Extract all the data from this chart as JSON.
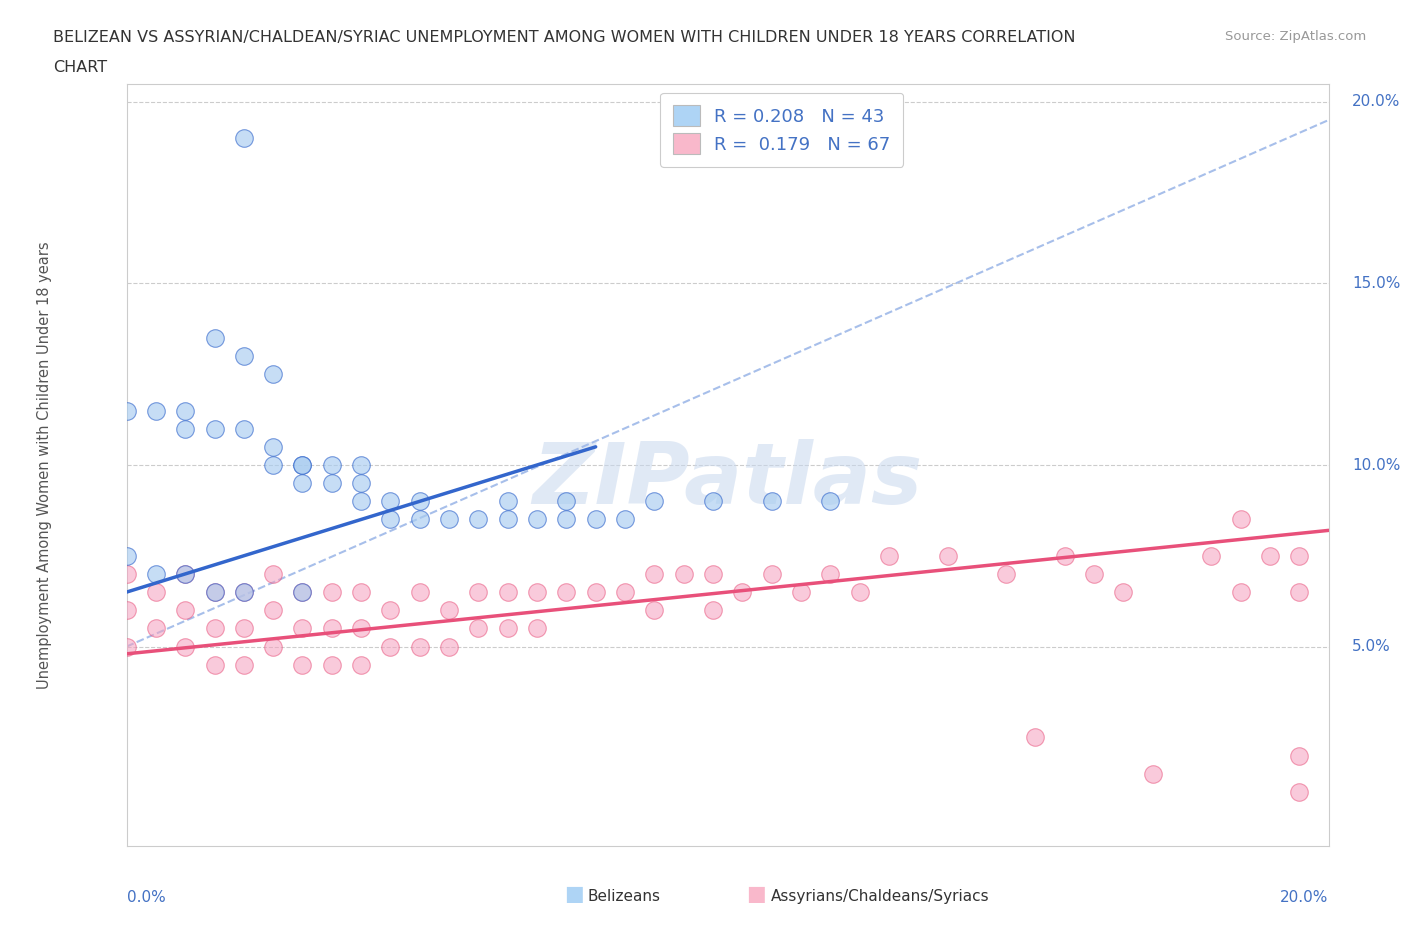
{
  "title_line1": "BELIZEAN VS ASSYRIAN/CHALDEAN/SYRIAC UNEMPLOYMENT AMONG WOMEN WITH CHILDREN UNDER 18 YEARS CORRELATION",
  "title_line2": "CHART",
  "source": "Source: ZipAtlas.com",
  "ylabel": "Unemployment Among Women with Children Under 18 years",
  "color_belizean_fill": "#aed4f5",
  "color_assyrian_fill": "#f9b8cb",
  "color_belizean_scatter": "#a8ccf0",
  "color_assyrian_scatter": "#f5a0be",
  "color_belizean_line": "#3366cc",
  "color_assyrian_line": "#e8507a",
  "color_dashed": "#9eb8e8",
  "color_axis_label": "#4472c4",
  "color_watermark": "#c8d8ee",
  "legend_label1": "R = 0.208   N = 43",
  "legend_label2": "R =  0.179   N = 67",
  "bottom_label1": "Belizeans",
  "bottom_label2": "Assyrians/Chaldeans/Syriacs",
  "xlim": [
    0.0,
    0.205
  ],
  "ylim": [
    -0.005,
    0.205
  ],
  "bel_line_x": [
    0.0,
    0.08
  ],
  "bel_line_y": [
    0.065,
    0.105
  ],
  "ass_line_x": [
    0.0,
    0.205
  ],
  "ass_line_y": [
    0.048,
    0.082
  ],
  "dash_line_x": [
    0.0,
    0.205
  ],
  "dash_line_y": [
    0.05,
    0.195
  ],
  "belizean_x": [
    0.02,
    0.015,
    0.02,
    0.025,
    0.0,
    0.005,
    0.01,
    0.01,
    0.015,
    0.02,
    0.025,
    0.025,
    0.03,
    0.03,
    0.03,
    0.035,
    0.035,
    0.04,
    0.04,
    0.04,
    0.045,
    0.045,
    0.05,
    0.05,
    0.055,
    0.06,
    0.065,
    0.065,
    0.07,
    0.075,
    0.08,
    0.085,
    0.09,
    0.1,
    0.11,
    0.12,
    0.0,
    0.005,
    0.01,
    0.015,
    0.02,
    0.03,
    0.075
  ],
  "belizean_y": [
    0.19,
    0.135,
    0.13,
    0.125,
    0.115,
    0.115,
    0.115,
    0.11,
    0.11,
    0.11,
    0.105,
    0.1,
    0.1,
    0.1,
    0.095,
    0.1,
    0.095,
    0.1,
    0.095,
    0.09,
    0.09,
    0.085,
    0.09,
    0.085,
    0.085,
    0.085,
    0.09,
    0.085,
    0.085,
    0.09,
    0.085,
    0.085,
    0.09,
    0.09,
    0.09,
    0.09,
    0.075,
    0.07,
    0.07,
    0.065,
    0.065,
    0.065,
    0.085
  ],
  "assyrian_x": [
    0.0,
    0.0,
    0.0,
    0.005,
    0.005,
    0.01,
    0.01,
    0.01,
    0.015,
    0.015,
    0.015,
    0.02,
    0.02,
    0.02,
    0.025,
    0.025,
    0.025,
    0.03,
    0.03,
    0.03,
    0.035,
    0.035,
    0.035,
    0.04,
    0.04,
    0.04,
    0.045,
    0.045,
    0.05,
    0.05,
    0.055,
    0.055,
    0.06,
    0.06,
    0.065,
    0.065,
    0.07,
    0.07,
    0.075,
    0.08,
    0.085,
    0.09,
    0.09,
    0.095,
    0.1,
    0.1,
    0.105,
    0.11,
    0.115,
    0.12,
    0.125,
    0.13,
    0.14,
    0.15,
    0.155,
    0.16,
    0.165,
    0.17,
    0.175,
    0.185,
    0.19,
    0.19,
    0.195,
    0.2,
    0.2,
    0.2,
    0.2
  ],
  "assyrian_y": [
    0.07,
    0.06,
    0.05,
    0.065,
    0.055,
    0.07,
    0.06,
    0.05,
    0.065,
    0.055,
    0.045,
    0.065,
    0.055,
    0.045,
    0.07,
    0.06,
    0.05,
    0.065,
    0.055,
    0.045,
    0.065,
    0.055,
    0.045,
    0.065,
    0.055,
    0.045,
    0.06,
    0.05,
    0.065,
    0.05,
    0.06,
    0.05,
    0.065,
    0.055,
    0.065,
    0.055,
    0.065,
    0.055,
    0.065,
    0.065,
    0.065,
    0.07,
    0.06,
    0.07,
    0.07,
    0.06,
    0.065,
    0.07,
    0.065,
    0.07,
    0.065,
    0.075,
    0.075,
    0.07,
    0.025,
    0.075,
    0.07,
    0.065,
    0.015,
    0.075,
    0.085,
    0.065,
    0.075,
    0.065,
    0.075,
    0.02,
    0.01
  ]
}
